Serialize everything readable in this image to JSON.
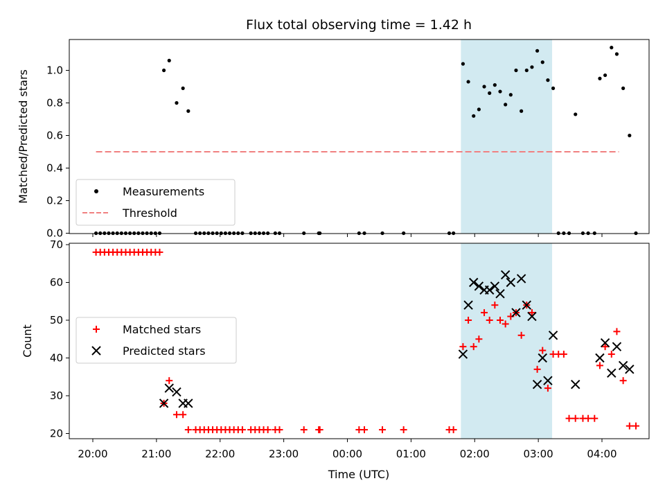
{
  "chart_data": [
    {
      "type": "scatter",
      "title": "Flux total observing time = 1.42 h",
      "ylabel": "Matched/Predicted stars",
      "xlabel": "",
      "ylim": [
        0,
        1.2
      ],
      "yticks": [
        "0.0",
        "0.2",
        "0.4",
        "0.6",
        "0.8",
        "1.0"
      ],
      "shaded_region": [
        "01:47",
        "03:13"
      ],
      "legend_position": "lower-left",
      "threshold": {
        "name": "Threshold",
        "value": 0.5,
        "x_range": [
          "20:03",
          "04:16"
        ],
        "color": "#f08080"
      },
      "series": [
        {
          "name": "Measurements",
          "color": "#000000",
          "points": [
            [
              "20:03",
              0
            ],
            [
              "20:07",
              0
            ],
            [
              "20:11",
              0
            ],
            [
              "20:15",
              0
            ],
            [
              "20:19",
              0
            ],
            [
              "20:23",
              0
            ],
            [
              "20:27",
              0
            ],
            [
              "20:31",
              0
            ],
            [
              "20:35",
              0
            ],
            [
              "20:39",
              0
            ],
            [
              "20:43",
              0
            ],
            [
              "20:47",
              0
            ],
            [
              "20:51",
              0
            ],
            [
              "20:55",
              0
            ],
            [
              "20:59",
              0
            ],
            [
              "21:03",
              0
            ],
            [
              "21:07",
              1.0
            ],
            [
              "21:12",
              1.06
            ],
            [
              "21:19",
              0.8
            ],
            [
              "21:25",
              0.89
            ],
            [
              "21:30",
              0.75
            ],
            [
              "21:37",
              0
            ],
            [
              "21:41",
              0
            ],
            [
              "21:45",
              0
            ],
            [
              "21:49",
              0
            ],
            [
              "21:53",
              0
            ],
            [
              "21:57",
              0
            ],
            [
              "22:01",
              0
            ],
            [
              "22:05",
              0
            ],
            [
              "22:09",
              0
            ],
            [
              "22:13",
              0
            ],
            [
              "22:17",
              0
            ],
            [
              "22:21",
              0
            ],
            [
              "22:29",
              0
            ],
            [
              "22:33",
              0
            ],
            [
              "22:37",
              0
            ],
            [
              "22:41",
              0
            ],
            [
              "22:45",
              0
            ],
            [
              "22:52",
              0
            ],
            [
              "22:56",
              0
            ],
            [
              "23:19",
              0
            ],
            [
              "23:33",
              0
            ],
            [
              "23:34",
              0
            ],
            [
              "00:11",
              0
            ],
            [
              "00:16",
              0
            ],
            [
              "00:33",
              0
            ],
            [
              "00:53",
              0
            ],
            [
              "01:36",
              0
            ],
            [
              "01:40",
              0
            ],
            [
              "01:49",
              1.04
            ],
            [
              "01:54",
              0.93
            ],
            [
              "01:59",
              0.72
            ],
            [
              "02:04",
              0.76
            ],
            [
              "02:09",
              0.9
            ],
            [
              "02:14",
              0.86
            ],
            [
              "02:19",
              0.91
            ],
            [
              "02:24",
              0.87
            ],
            [
              "02:29",
              0.79
            ],
            [
              "02:34",
              0.85
            ],
            [
              "02:39",
              1.0
            ],
            [
              "02:44",
              0.75
            ],
            [
              "02:49",
              1.0
            ],
            [
              "02:54",
              1.02
            ],
            [
              "02:59",
              1.12
            ],
            [
              "03:04",
              1.05
            ],
            [
              "03:09",
              0.94
            ],
            [
              "03:14",
              0.89
            ],
            [
              "03:19",
              0
            ],
            [
              "03:24",
              0
            ],
            [
              "03:29",
              0
            ],
            [
              "03:35",
              0.73
            ],
            [
              "03:42",
              0
            ],
            [
              "03:47",
              0
            ],
            [
              "03:53",
              0
            ],
            [
              "03:58",
              0.95
            ],
            [
              "04:03",
              0.97
            ],
            [
              "04:09",
              1.14
            ],
            [
              "04:14",
              1.1
            ],
            [
              "04:20",
              0.89
            ],
            [
              "04:26",
              0.6
            ],
            [
              "04:32",
              0
            ]
          ]
        }
      ]
    },
    {
      "type": "scatter",
      "title": "",
      "ylabel": "Count",
      "xlabel": "Time (UTC)",
      "ylim": [
        19,
        70
      ],
      "yticks": [
        "20",
        "30",
        "40",
        "50",
        "60",
        "70"
      ],
      "xticks": [
        "20:00",
        "21:00",
        "22:00",
        "23:00",
        "00:00",
        "01:00",
        "02:00",
        "03:00",
        "04:00"
      ],
      "shaded_region": [
        "01:47",
        "03:13"
      ],
      "legend_position": "center-left",
      "series": [
        {
          "name": "Matched stars",
          "marker": "plus",
          "color": "#ff0000",
          "points": [
            [
              "20:03",
              68
            ],
            [
              "20:07",
              68
            ],
            [
              "20:11",
              68
            ],
            [
              "20:15",
              68
            ],
            [
              "20:19",
              68
            ],
            [
              "20:23",
              68
            ],
            [
              "20:27",
              68
            ],
            [
              "20:31",
              68
            ],
            [
              "20:35",
              68
            ],
            [
              "20:39",
              68
            ],
            [
              "20:43",
              68
            ],
            [
              "20:47",
              68
            ],
            [
              "20:51",
              68
            ],
            [
              "20:55",
              68
            ],
            [
              "20:59",
              68
            ],
            [
              "21:03",
              68
            ],
            [
              "21:07",
              28
            ],
            [
              "21:12",
              34
            ],
            [
              "21:19",
              25
            ],
            [
              "21:25",
              25
            ],
            [
              "21:30",
              21
            ],
            [
              "21:37",
              21
            ],
            [
              "21:41",
              21
            ],
            [
              "21:45",
              21
            ],
            [
              "21:49",
              21
            ],
            [
              "21:53",
              21
            ],
            [
              "21:57",
              21
            ],
            [
              "22:01",
              21
            ],
            [
              "22:05",
              21
            ],
            [
              "22:09",
              21
            ],
            [
              "22:13",
              21
            ],
            [
              "22:17",
              21
            ],
            [
              "22:21",
              21
            ],
            [
              "22:29",
              21
            ],
            [
              "22:33",
              21
            ],
            [
              "22:37",
              21
            ],
            [
              "22:41",
              21
            ],
            [
              "22:45",
              21
            ],
            [
              "22:52",
              21
            ],
            [
              "22:56",
              21
            ],
            [
              "23:19",
              21
            ],
            [
              "23:33",
              21
            ],
            [
              "23:34",
              21
            ],
            [
              "00:11",
              21
            ],
            [
              "00:16",
              21
            ],
            [
              "00:33",
              21
            ],
            [
              "00:53",
              21
            ],
            [
              "01:36",
              21
            ],
            [
              "01:40",
              21
            ],
            [
              "01:49",
              43
            ],
            [
              "01:54",
              50
            ],
            [
              "01:59",
              43
            ],
            [
              "02:04",
              45
            ],
            [
              "02:09",
              52
            ],
            [
              "02:14",
              50
            ],
            [
              "02:19",
              54
            ],
            [
              "02:24",
              50
            ],
            [
              "02:29",
              49
            ],
            [
              "02:34",
              51
            ],
            [
              "02:39",
              52
            ],
            [
              "02:44",
              46
            ],
            [
              "02:49",
              54
            ],
            [
              "02:54",
              52
            ],
            [
              "02:59",
              37
            ],
            [
              "03:04",
              42
            ],
            [
              "03:09",
              32
            ],
            [
              "03:14",
              41
            ],
            [
              "03:19",
              41
            ],
            [
              "03:24",
              41
            ],
            [
              "03:29",
              24
            ],
            [
              "03:35",
              24
            ],
            [
              "03:42",
              24
            ],
            [
              "03:47",
              24
            ],
            [
              "03:53",
              24
            ],
            [
              "03:58",
              38
            ],
            [
              "04:03",
              43
            ],
            [
              "04:09",
              41
            ],
            [
              "04:14",
              47
            ],
            [
              "04:20",
              34
            ],
            [
              "04:26",
              22
            ],
            [
              "04:32",
              22
            ]
          ]
        },
        {
          "name": "Predicted stars",
          "marker": "x",
          "color": "#000000",
          "points": [
            [
              "21:07",
              28
            ],
            [
              "21:12",
              32
            ],
            [
              "21:19",
              31
            ],
            [
              "21:25",
              28
            ],
            [
              "21:30",
              28
            ],
            [
              "01:49",
              41
            ],
            [
              "01:54",
              54
            ],
            [
              "01:59",
              60
            ],
            [
              "02:04",
              59
            ],
            [
              "02:09",
              58
            ],
            [
              "02:14",
              58
            ],
            [
              "02:19",
              59
            ],
            [
              "02:24",
              57
            ],
            [
              "02:29",
              62
            ],
            [
              "02:34",
              60
            ],
            [
              "02:39",
              52
            ],
            [
              "02:44",
              61
            ],
            [
              "02:49",
              54
            ],
            [
              "02:54",
              51
            ],
            [
              "02:59",
              33
            ],
            [
              "03:04",
              40
            ],
            [
              "03:09",
              34
            ],
            [
              "03:14",
              46
            ],
            [
              "03:35",
              33
            ],
            [
              "03:58",
              40
            ],
            [
              "04:03",
              44
            ],
            [
              "04:09",
              36
            ],
            [
              "04:14",
              43
            ],
            [
              "04:20",
              38
            ],
            [
              "04:26",
              37
            ]
          ]
        }
      ]
    }
  ]
}
